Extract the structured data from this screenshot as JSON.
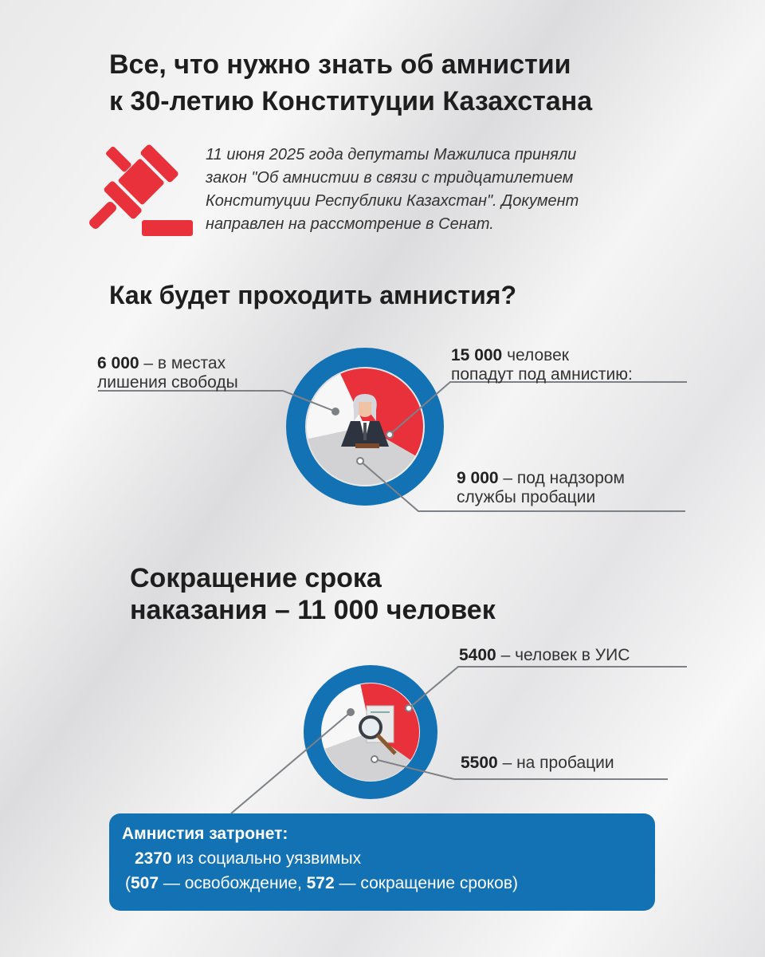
{
  "title": [
    "Все, что нужно знать об амнистии",
    "к 30-летию Конституции Казахстана"
  ],
  "intro": [
    "11 июня 2025 года депутаты Мажилиса приняли",
    "закон \"Об амнистии в связи с тридцатилетием",
    "Конституции Республики Казахстан\". Документ",
    "направлен на рассмотрение в Сенат."
  ],
  "section1": {
    "heading": "Как будет проходить амнистия?",
    "total": {
      "value": "15 000",
      "text1": "человек",
      "text2": "попадут под амнистию:"
    },
    "prison": {
      "value": "6 000",
      "text1": "– в местах",
      "text2": "лишения свободы"
    },
    "probation": {
      "value": "9 000",
      "text1": "– под надзором",
      "text2": "службы пробации"
    },
    "icon": "judge-icon"
  },
  "section2": {
    "heading": [
      "Сокращение срока",
      "наказания – 11 000 человек"
    ],
    "uis": {
      "value": "5400",
      "text": "– человек в УИС"
    },
    "probation": {
      "value": "5500",
      "text": "– на пробации"
    },
    "icon": "magnifier-document-icon"
  },
  "box": {
    "title": "Амнистия затронет:",
    "count": "2370",
    "line2": " из социально уязвимых",
    "p1": "(",
    "v1": "507",
    "t1": " — освобождение, ",
    "v2": "572",
    "t2": " — сокращение сроков)"
  },
  "colors": {
    "red": "#e8313a",
    "blue": "#1272b4",
    "gray": "#d2d2d4",
    "white": "#f7f7f7"
  }
}
